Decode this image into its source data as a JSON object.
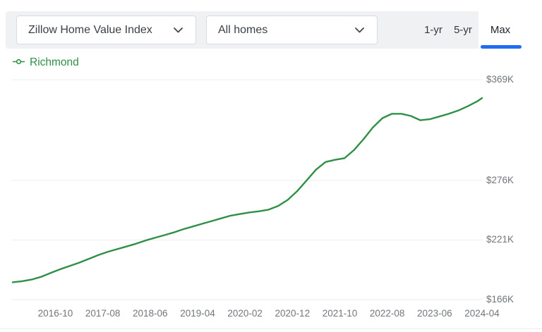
{
  "header": {
    "metric_dropdown": {
      "value": "Zillow Home Value Index"
    },
    "home_type_dropdown": {
      "value": "All homes"
    },
    "range_buttons": [
      {
        "label": "1-yr",
        "selected": false
      },
      {
        "label": "5-yr",
        "selected": false
      },
      {
        "label": "Max",
        "selected": true
      }
    ]
  },
  "legend": {
    "series_label": "Richmond",
    "marker": "line-circle-icon"
  },
  "colors": {
    "series_green": "#2f8f46",
    "accent_blue": "#1e6cf0",
    "controls_bar_bg": "#f0f1f3",
    "axis_text": "#70767c",
    "gridline": "#edeef0"
  },
  "chart_data": {
    "type": "line",
    "title": "",
    "xlabel": "",
    "ylabel": "",
    "y_unit": "USD thousands",
    "grid": "horizontal",
    "legend_position": "top-left",
    "x_start": "2016-01",
    "x_end": "2024-04",
    "ylim": [
      166,
      369
    ],
    "yticks": [
      {
        "value": 369,
        "label": "$369K"
      },
      {
        "value": 276,
        "label": "$276K"
      },
      {
        "value": 221,
        "label": "$221K"
      },
      {
        "value": 166,
        "label": "$166K"
      }
    ],
    "xticks": [
      "2016-10",
      "2017-08",
      "2018-06",
      "2019-04",
      "2020-02",
      "2020-12",
      "2021-10",
      "2022-08",
      "2023-06",
      "2024-04"
    ],
    "series": [
      {
        "name": "Richmond",
        "color": "#2f8f46",
        "points": [
          [
            "2016-01",
            182
          ],
          [
            "2016-03",
            183
          ],
          [
            "2016-05",
            184.5
          ],
          [
            "2016-07",
            187
          ],
          [
            "2016-09",
            190.5
          ],
          [
            "2016-11",
            194
          ],
          [
            "2017-01",
            197
          ],
          [
            "2017-03",
            200
          ],
          [
            "2017-05",
            203.5
          ],
          [
            "2017-07",
            207
          ],
          [
            "2017-09",
            210
          ],
          [
            "2017-11",
            212.5
          ],
          [
            "2018-01",
            215
          ],
          [
            "2018-03",
            217.5
          ],
          [
            "2018-05",
            220.5
          ],
          [
            "2018-07",
            223
          ],
          [
            "2018-09",
            225.5
          ],
          [
            "2018-11",
            228
          ],
          [
            "2019-01",
            231
          ],
          [
            "2019-03",
            233.5
          ],
          [
            "2019-05",
            236
          ],
          [
            "2019-07",
            238.5
          ],
          [
            "2019-09",
            241
          ],
          [
            "2019-11",
            243.5
          ],
          [
            "2020-01",
            245
          ],
          [
            "2020-03",
            246.5
          ],
          [
            "2020-05",
            247.5
          ],
          [
            "2020-07",
            249
          ],
          [
            "2020-09",
            252.5
          ],
          [
            "2020-11",
            258
          ],
          [
            "2021-01",
            266
          ],
          [
            "2021-03",
            276
          ],
          [
            "2021-05",
            286
          ],
          [
            "2021-07",
            293
          ],
          [
            "2021-09",
            295
          ],
          [
            "2021-11",
            296.5
          ],
          [
            "2022-01",
            304
          ],
          [
            "2022-03",
            314
          ],
          [
            "2022-05",
            325
          ],
          [
            "2022-07",
            333.5
          ],
          [
            "2022-09",
            337.5
          ],
          [
            "2022-11",
            337.5
          ],
          [
            "2023-01",
            335.5
          ],
          [
            "2023-03",
            331.5
          ],
          [
            "2023-05",
            332.5
          ],
          [
            "2023-07",
            335
          ],
          [
            "2023-09",
            337.5
          ],
          [
            "2023-11",
            340.5
          ],
          [
            "2024-01",
            344.5
          ],
          [
            "2024-03",
            349
          ],
          [
            "2024-04",
            352
          ]
        ]
      }
    ]
  }
}
